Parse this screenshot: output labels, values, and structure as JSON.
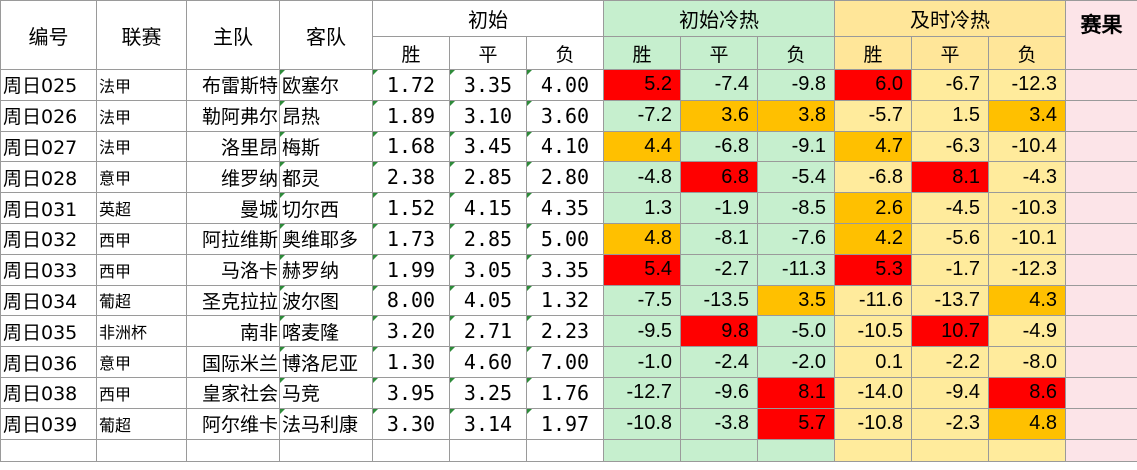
{
  "headers": {
    "code": "编号",
    "league": "联赛",
    "home": "主队",
    "away": "客队",
    "initial": "初始",
    "initial_cold": "初始冷热",
    "live_cold": "及时冷热",
    "result": "赛果",
    "win": "胜",
    "draw": "平",
    "loss": "负"
  },
  "colors": {
    "cold_initial_bg": "#c6efce",
    "cold_live_bg": "#ffeb9c",
    "highlight_orange": "#ffc000",
    "highlight_red": "#ff0000",
    "result_bg": "#fce4e8"
  },
  "rows": [
    {
      "code": "周日025",
      "league": "法甲",
      "home": "布雷斯特",
      "away": "欧塞尔",
      "odds": [
        "1.72",
        "3.35",
        "4.00"
      ],
      "init_heat": [
        "5.2",
        "-7.4",
        "-9.8"
      ],
      "init_hl": [
        "red",
        "",
        ""
      ],
      "live_heat": [
        "6.0",
        "-6.7",
        "-12.3"
      ],
      "live_hl": [
        "red",
        "",
        ""
      ]
    },
    {
      "code": "周日026",
      "league": "法甲",
      "home": "勒阿弗尔",
      "away": "昂热",
      "odds": [
        "1.89",
        "3.10",
        "3.60"
      ],
      "init_heat": [
        "-7.2",
        "3.6",
        "3.8"
      ],
      "init_hl": [
        "",
        "orange",
        "orange"
      ],
      "live_heat": [
        "-5.7",
        "1.5",
        "3.4"
      ],
      "live_hl": [
        "",
        "",
        "orange"
      ]
    },
    {
      "code": "周日027",
      "league": "法甲",
      "home": "洛里昂",
      "away": "梅斯",
      "odds": [
        "1.68",
        "3.45",
        "4.10"
      ],
      "init_heat": [
        "4.4",
        "-6.8",
        "-9.1"
      ],
      "init_hl": [
        "orange",
        "",
        ""
      ],
      "live_heat": [
        "4.7",
        "-6.3",
        "-10.4"
      ],
      "live_hl": [
        "orange",
        "",
        ""
      ]
    },
    {
      "code": "周日028",
      "league": "意甲",
      "home": "维罗纳",
      "away": "都灵",
      "odds": [
        "2.38",
        "2.85",
        "2.80"
      ],
      "init_heat": [
        "-4.8",
        "6.8",
        "-5.4"
      ],
      "init_hl": [
        "",
        "red",
        ""
      ],
      "live_heat": [
        "-6.8",
        "8.1",
        "-4.3"
      ],
      "live_hl": [
        "",
        "red",
        ""
      ]
    },
    {
      "code": "周日031",
      "league": "英超",
      "home": "曼城",
      "away": "切尔西",
      "odds": [
        "1.52",
        "4.15",
        "4.35"
      ],
      "init_heat": [
        "1.3",
        "-1.9",
        "-8.5"
      ],
      "init_hl": [
        "",
        "",
        ""
      ],
      "live_heat": [
        "2.6",
        "-4.5",
        "-10.3"
      ],
      "live_hl": [
        "orange",
        "",
        ""
      ]
    },
    {
      "code": "周日032",
      "league": "西甲",
      "home": "阿拉维斯",
      "away": "奥维耶多",
      "odds": [
        "1.73",
        "2.85",
        "5.00"
      ],
      "init_heat": [
        "4.8",
        "-8.1",
        "-7.6"
      ],
      "init_hl": [
        "orange",
        "",
        ""
      ],
      "live_heat": [
        "4.2",
        "-5.6",
        "-10.1"
      ],
      "live_hl": [
        "orange",
        "",
        ""
      ]
    },
    {
      "code": "周日033",
      "league": "西甲",
      "home": "马洛卡",
      "away": "赫罗纳",
      "odds": [
        "1.99",
        "3.05",
        "3.35"
      ],
      "init_heat": [
        "5.4",
        "-2.7",
        "-11.3"
      ],
      "init_hl": [
        "red",
        "",
        ""
      ],
      "live_heat": [
        "5.3",
        "-1.7",
        "-12.3"
      ],
      "live_hl": [
        "red",
        "",
        ""
      ]
    },
    {
      "code": "周日034",
      "league": "葡超",
      "home": "圣克拉拉",
      "away": "波尔图",
      "odds": [
        "8.00",
        "4.05",
        "1.32"
      ],
      "init_heat": [
        "-7.5",
        "-13.5",
        "3.5"
      ],
      "init_hl": [
        "",
        "",
        "orange"
      ],
      "live_heat": [
        "-11.6",
        "-13.7",
        "4.3"
      ],
      "live_hl": [
        "",
        "",
        "orange"
      ]
    },
    {
      "code": "周日035",
      "league": "非洲杯",
      "home": "南非",
      "away": "喀麦隆",
      "odds": [
        "3.20",
        "2.71",
        "2.23"
      ],
      "init_heat": [
        "-9.5",
        "9.8",
        "-5.0"
      ],
      "init_hl": [
        "",
        "red",
        ""
      ],
      "live_heat": [
        "-10.5",
        "10.7",
        "-4.9"
      ],
      "live_hl": [
        "",
        "red",
        ""
      ]
    },
    {
      "code": "周日036",
      "league": "意甲",
      "home": "国际米兰",
      "away": "博洛尼亚",
      "odds": [
        "1.30",
        "4.60",
        "7.00"
      ],
      "init_heat": [
        "-1.0",
        "-2.4",
        "-2.0"
      ],
      "init_hl": [
        "",
        "",
        ""
      ],
      "live_heat": [
        "0.1",
        "-2.2",
        "-8.0"
      ],
      "live_hl": [
        "",
        "",
        ""
      ]
    },
    {
      "code": "周日038",
      "league": "西甲",
      "home": "皇家社会",
      "away": "马竞",
      "odds": [
        "3.95",
        "3.25",
        "1.76"
      ],
      "init_heat": [
        "-12.7",
        "-9.6",
        "8.1"
      ],
      "init_hl": [
        "",
        "",
        "red"
      ],
      "live_heat": [
        "-14.0",
        "-9.4",
        "8.6"
      ],
      "live_hl": [
        "",
        "",
        "red"
      ]
    },
    {
      "code": "周日039",
      "league": "葡超",
      "home": "阿尔维卡",
      "away": "法马利康",
      "odds": [
        "3.30",
        "3.14",
        "1.97"
      ],
      "init_heat": [
        "-10.8",
        "-3.8",
        "5.7"
      ],
      "init_hl": [
        "",
        "",
        "red"
      ],
      "live_heat": [
        "-10.8",
        "-2.3",
        "4.8"
      ],
      "live_hl": [
        "",
        "",
        "orange"
      ]
    }
  ]
}
